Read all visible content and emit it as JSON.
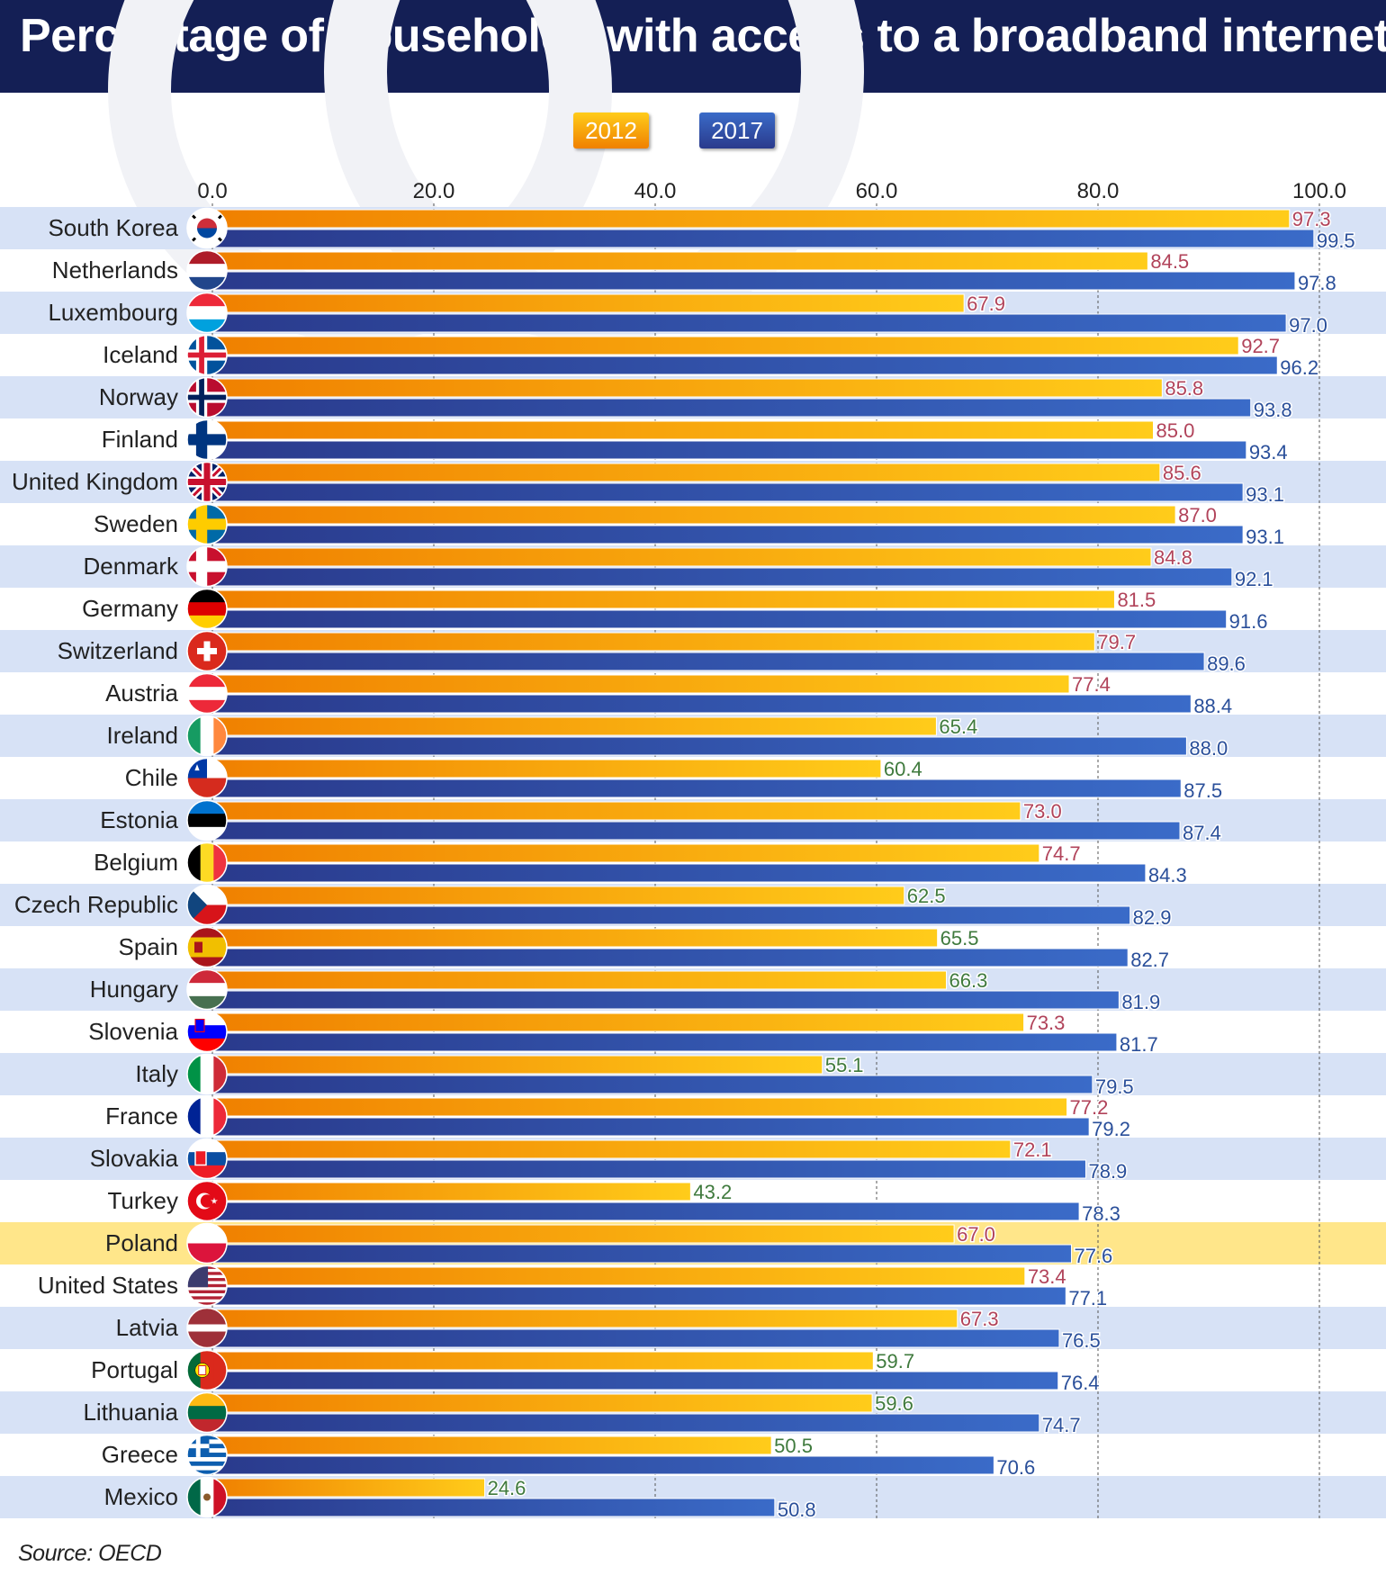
{
  "header": {
    "title": "Percentage of households with access to a broadband internet"
  },
  "legend": {
    "label_2012": "2012",
    "label_2017": "2017"
  },
  "source": "Source: OECD",
  "colors": {
    "header_bg": "#141f55",
    "row_alt": "#d7e2f6",
    "row_highlight": "#ffe68a",
    "bar_2012_light": "#ffcc1a",
    "bar_2012_dark": "#f08000",
    "bar_2017_light": "#3a6bc8",
    "bar_2017_dark": "#2a3a8c",
    "label_above": "#b1435a",
    "label_below": "#3f7a3d"
  },
  "chart_data": {
    "type": "bar",
    "orientation": "horizontal",
    "xlim": [
      0,
      100
    ],
    "xticks": [
      "0.0",
      "20.0",
      "40.0",
      "60.0",
      "80.0",
      "100.0"
    ],
    "grid": true,
    "legend_position": "top-center",
    "highlight": "Poland",
    "categories": [
      "South Korea",
      "Netherlands",
      "Luxembourg",
      "Iceland",
      "Norway",
      "Finland",
      "United Kingdom",
      "Sweden",
      "Denmark",
      "Germany",
      "Switzerland",
      "Austria",
      "Ireland",
      "Chile",
      "Estonia",
      "Belgium",
      "Czech Republic",
      "Spain",
      "Hungary",
      "Slovenia",
      "Italy",
      "France",
      "Slovakia",
      "Turkey",
      "Poland",
      "United States",
      "Latvia",
      "Portugal",
      "Lithuania",
      "Greece",
      "Mexico"
    ],
    "series": [
      {
        "name": "2012",
        "values": [
          97.3,
          84.5,
          67.9,
          92.7,
          85.8,
          85.0,
          85.6,
          87.0,
          84.8,
          81.5,
          79.7,
          77.4,
          65.4,
          60.4,
          73.0,
          74.7,
          62.5,
          65.5,
          66.3,
          73.3,
          55.1,
          77.2,
          72.1,
          43.2,
          67.0,
          73.4,
          67.3,
          59.7,
          59.6,
          50.5,
          24.6
        ],
        "labels": [
          "97.3",
          "84.5",
          "67.9",
          "92.7",
          "85.8",
          "85.0",
          "85.6",
          "87.0",
          "84.8",
          "81.5",
          "79.7",
          "77.4",
          "65.4",
          "60.4",
          "73.0",
          "74.7",
          "62.5",
          "65.5",
          "66.3",
          "73.3",
          "55.1",
          "77.2",
          "72.1",
          "43.2",
          "67.0",
          "73.4",
          "67.3",
          "59.7",
          "59.6",
          "50.5",
          "24.6"
        ]
      },
      {
        "name": "2017",
        "values": [
          99.5,
          97.8,
          97.0,
          96.2,
          93.8,
          93.4,
          93.1,
          93.1,
          92.1,
          91.6,
          89.6,
          88.4,
          88.0,
          87.5,
          87.4,
          84.3,
          82.9,
          82.7,
          81.9,
          81.7,
          79.5,
          79.2,
          78.9,
          78.3,
          77.6,
          77.1,
          76.5,
          76.4,
          74.7,
          70.6,
          50.8
        ],
        "labels": [
          "99.5",
          "97.8",
          "97.0",
          "96.2",
          "93.8",
          "93.4",
          "93.1",
          "93.1",
          "92.1",
          "91.6",
          "89.6",
          "88.4",
          "88.0",
          "87.5",
          "87.4",
          "84.3",
          "82.9",
          "82.7",
          "81.9",
          "81.7",
          "79.5",
          "79.2",
          "78.9",
          "78.3",
          "77.6",
          "77.1",
          "76.5",
          "76.4",
          "74.7",
          "70.6",
          "50.8"
        ]
      }
    ],
    "flags": [
      "flag-south-korea-icon",
      "flag-netherlands-icon",
      "flag-luxembourg-icon",
      "flag-iceland-icon",
      "flag-norway-icon",
      "flag-finland-icon",
      "flag-united-kingdom-icon",
      "flag-sweden-icon",
      "flag-denmark-icon",
      "flag-germany-icon",
      "flag-switzerland-icon",
      "flag-austria-icon",
      "flag-ireland-icon",
      "flag-chile-icon",
      "flag-estonia-icon",
      "flag-belgium-icon",
      "flag-czech-republic-icon",
      "flag-spain-icon",
      "flag-hungary-icon",
      "flag-slovenia-icon",
      "flag-italy-icon",
      "flag-france-icon",
      "flag-slovakia-icon",
      "flag-turkey-icon",
      "flag-poland-icon",
      "flag-united-states-icon",
      "flag-latvia-icon",
      "flag-portugal-icon",
      "flag-lithuania-icon",
      "flag-greece-icon",
      "flag-mexico-icon"
    ]
  }
}
